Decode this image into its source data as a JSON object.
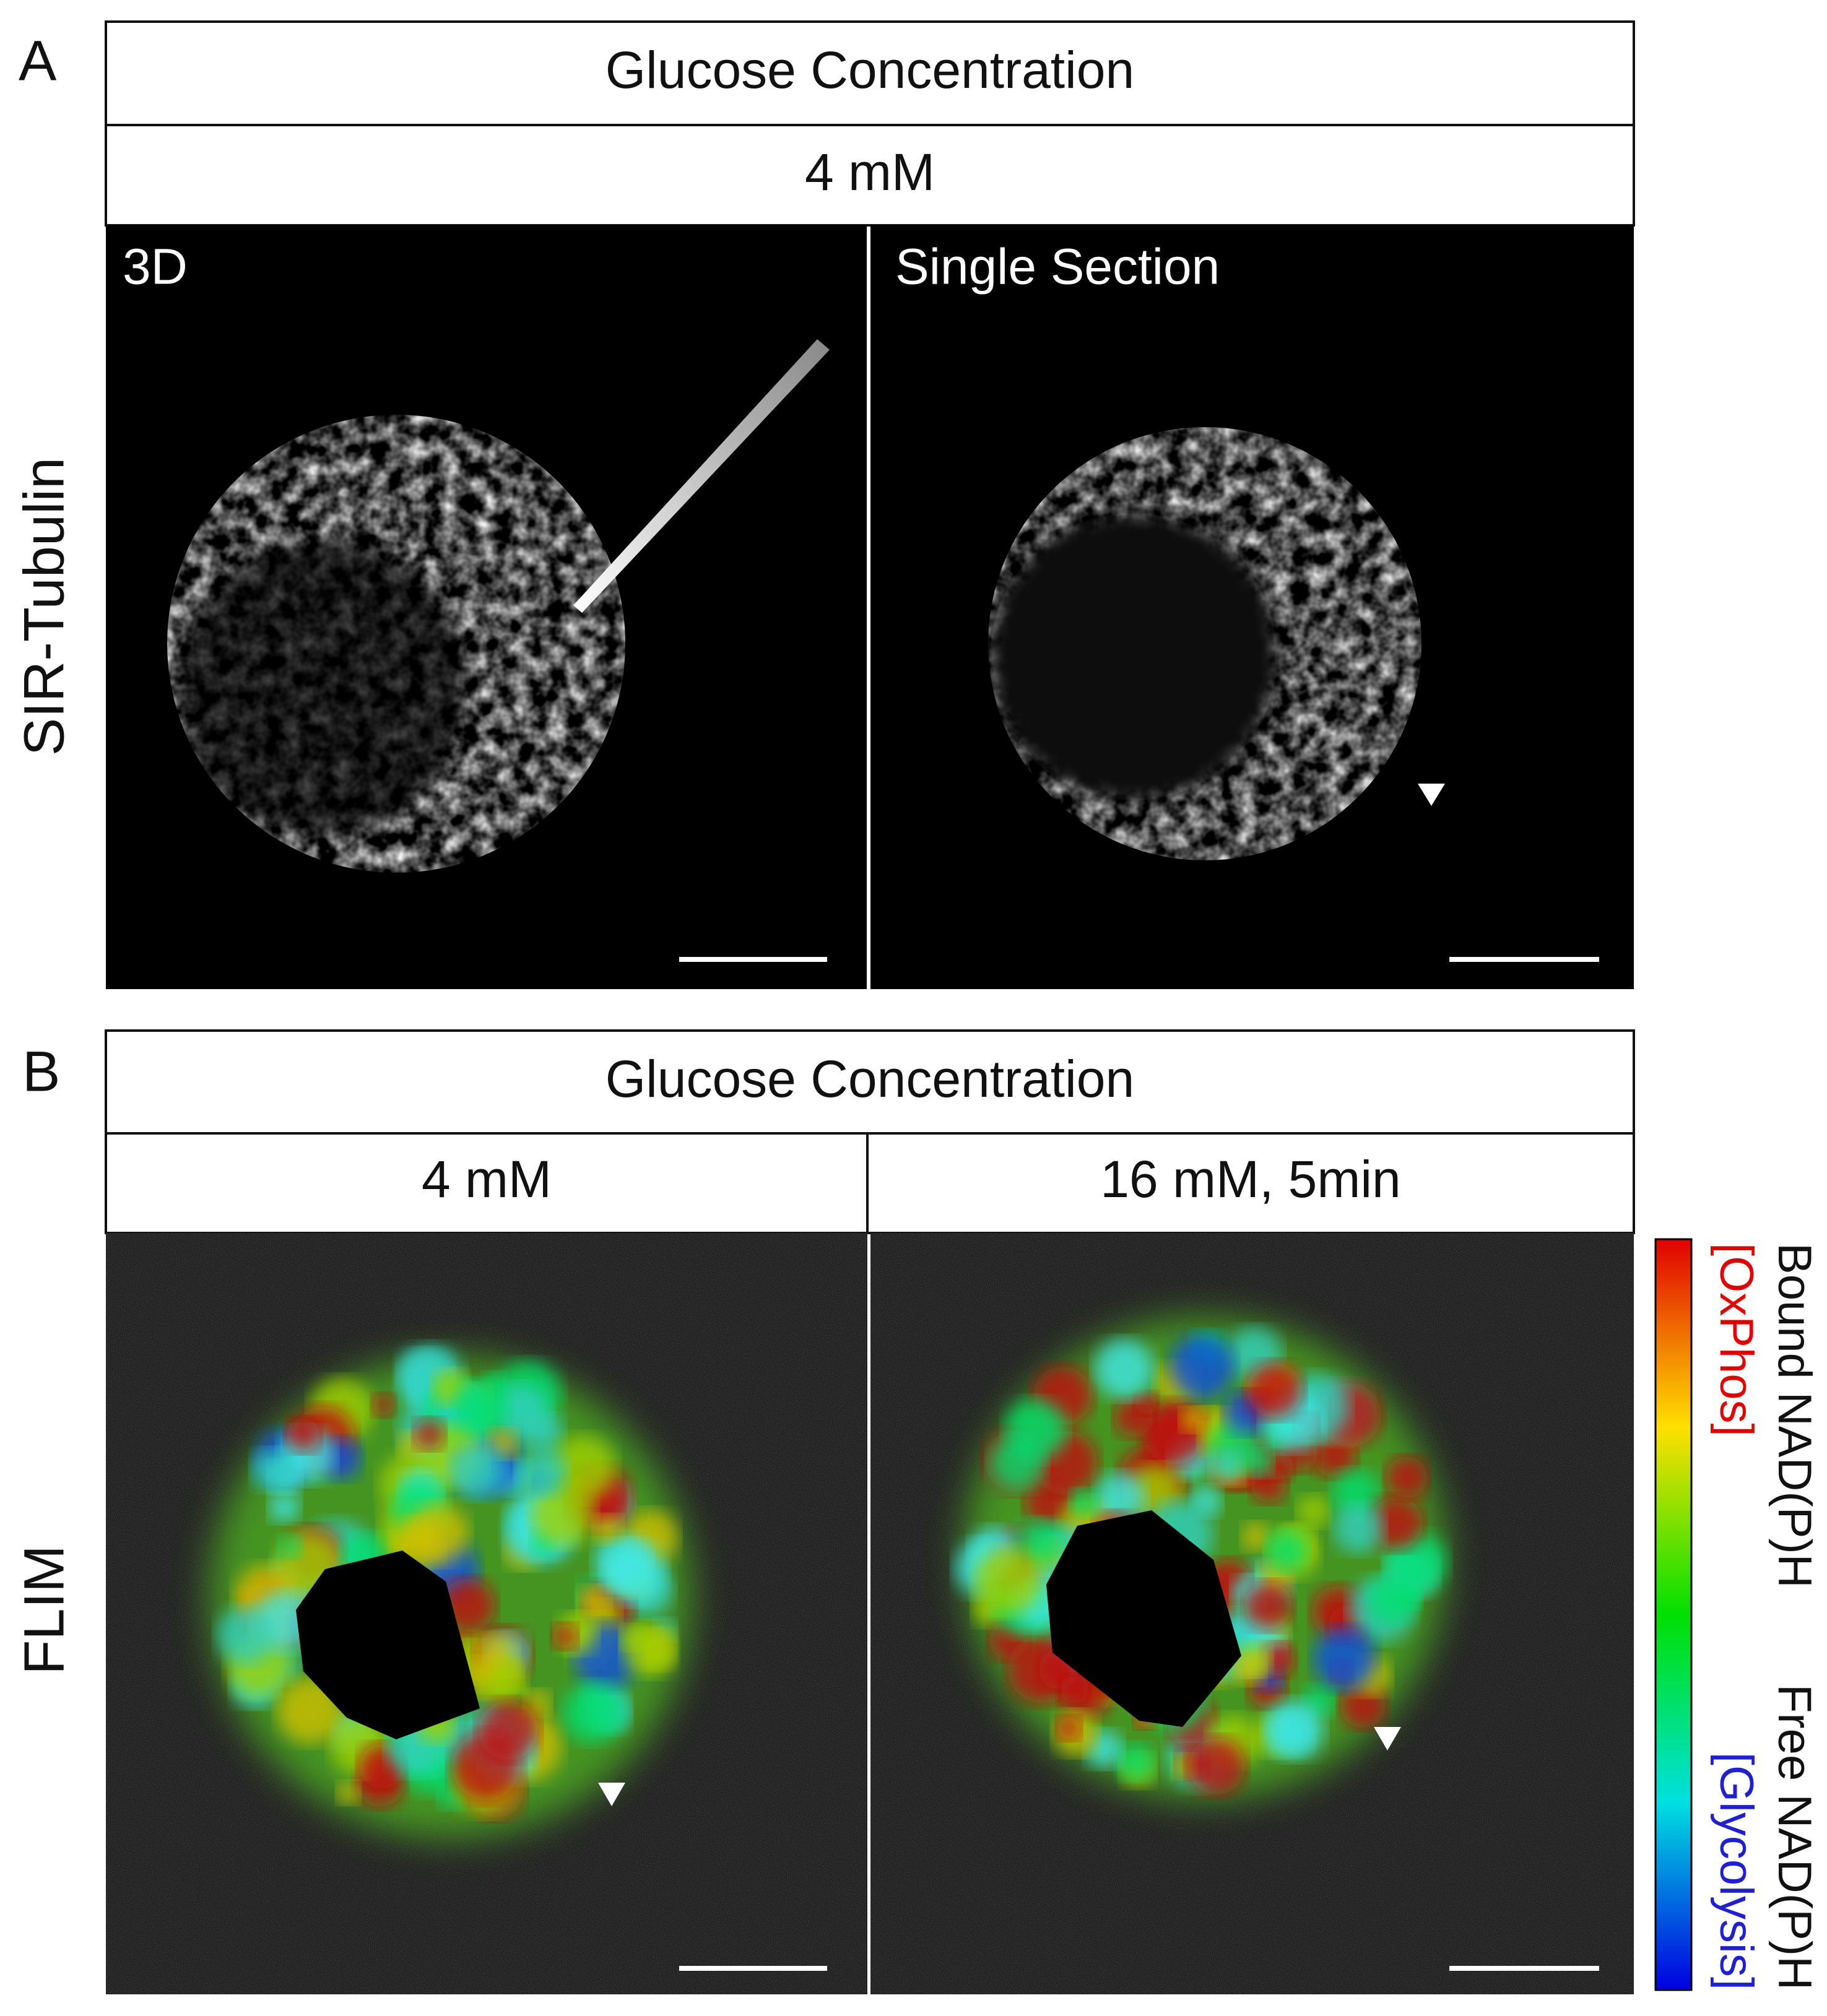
{
  "panel_a": {
    "label": "A",
    "header": "Glucose Concentration",
    "condition": "4 mM",
    "row_label": "SIR-Tubulin",
    "images": [
      {
        "label": "3D"
      },
      {
        "label": "Single Section"
      }
    ]
  },
  "panel_b": {
    "label": "B",
    "header": "Glucose Concentration",
    "conditions": [
      "4 mM",
      "16 mM, 5min"
    ],
    "row_label": "FLIM",
    "colorbar": {
      "top_label": "Bound NAD(P)H",
      "top_sublabel": "[OxPhos]",
      "bottom_label": "Free NAD(P)H",
      "bottom_sublabel": "[Glycolysis]"
    }
  }
}
